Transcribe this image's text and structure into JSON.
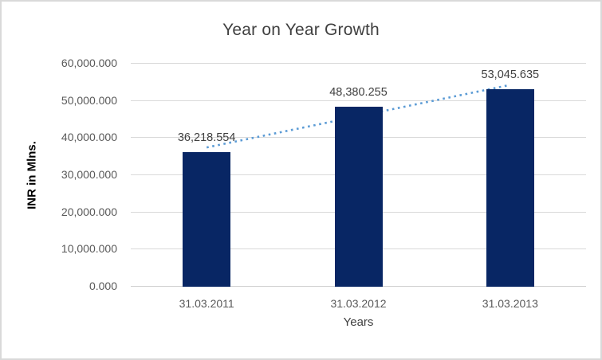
{
  "chart_data": {
    "type": "bar",
    "title": "Year on Year Growth",
    "xlabel": "Years",
    "ylabel": "INR in Mlns.",
    "categories": [
      "31.03.2011",
      "31.03.2012",
      "31.03.2013"
    ],
    "values": [
      36218.554,
      48380.255,
      53045.635
    ],
    "data_labels": [
      "36,218.554",
      "48,380.255",
      "53,045.635"
    ],
    "y_ticks": [
      "0.000",
      "10,000.000",
      "20,000.000",
      "30,000.000",
      "40,000.000",
      "50,000.000",
      "60,000.000"
    ],
    "ylim": [
      0,
      60000
    ],
    "grid": true,
    "legend": "none",
    "trendline": {
      "type": "linear",
      "style": "dotted",
      "start_value": 37468,
      "end_value": 54295
    }
  },
  "colors": {
    "bar": "#082664",
    "trendline": "#5b9bd5",
    "gridline": "#d9d9d9",
    "axis_line": "#d0d0d0",
    "tick_text": "#595959",
    "data_label_text": "#404040",
    "title_text": "#404040",
    "border": "#d9d9d9"
  }
}
